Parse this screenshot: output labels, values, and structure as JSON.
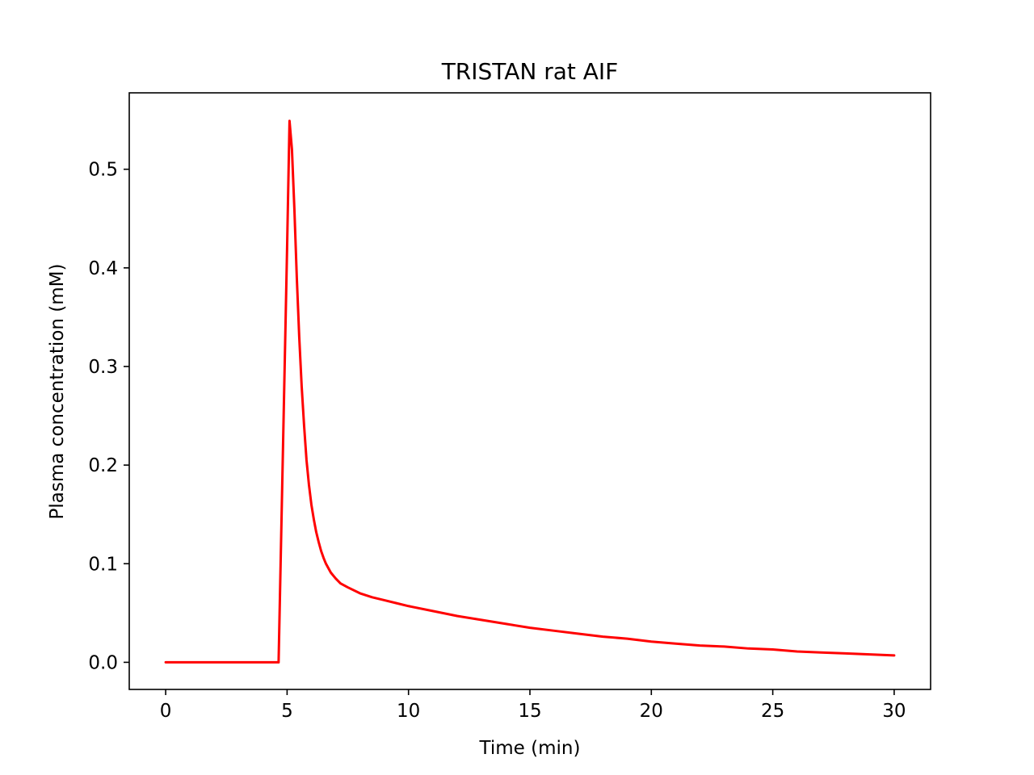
{
  "chart_data": {
    "type": "line",
    "title": "TRISTAN rat AIF",
    "xlabel": "Time (min)",
    "ylabel": "Plasma concentration (mM)",
    "xlim": [
      -1.5,
      31.5
    ],
    "ylim": [
      -0.0275,
      0.5775
    ],
    "xticks": [
      0,
      5,
      10,
      15,
      20,
      25,
      30
    ],
    "xtick_labels": [
      "0",
      "5",
      "10",
      "15",
      "20",
      "25",
      "30"
    ],
    "yticks": [
      0.0,
      0.1,
      0.2,
      0.3,
      0.4,
      0.5
    ],
    "ytick_labels": [
      "0.0",
      "0.1",
      "0.2",
      "0.3",
      "0.4",
      "0.5"
    ],
    "grid": false,
    "series": [
      {
        "color": "#ff0000",
        "x": [
          0,
          1,
          2,
          3,
          4,
          4.6,
          4.65,
          5.0,
          5.1,
          5.2,
          5.3,
          5.4,
          5.5,
          5.6,
          5.7,
          5.8,
          5.9,
          6.0,
          6.1,
          6.2,
          6.3,
          6.4,
          6.5,
          6.6,
          6.8,
          7.0,
          7.2,
          7.5,
          8.0,
          8.5,
          9.0,
          9.5,
          10,
          11,
          12,
          13,
          14,
          15,
          16,
          17,
          18,
          19,
          20,
          21,
          22,
          23,
          24,
          25,
          26,
          27,
          28,
          29,
          30
        ],
        "y": [
          0.0,
          0.0,
          0.0,
          0.0,
          0.0,
          0.0,
          0.0,
          0.42,
          0.549,
          0.52,
          0.46,
          0.39,
          0.33,
          0.28,
          0.24,
          0.205,
          0.18,
          0.16,
          0.145,
          0.132,
          0.122,
          0.113,
          0.106,
          0.1,
          0.091,
          0.085,
          0.08,
          0.076,
          0.07,
          0.066,
          0.063,
          0.06,
          0.057,
          0.052,
          0.047,
          0.043,
          0.039,
          0.035,
          0.032,
          0.029,
          0.026,
          0.024,
          0.021,
          0.019,
          0.017,
          0.016,
          0.014,
          0.013,
          0.011,
          0.01,
          0.009,
          0.008,
          0.007
        ]
      }
    ]
  }
}
